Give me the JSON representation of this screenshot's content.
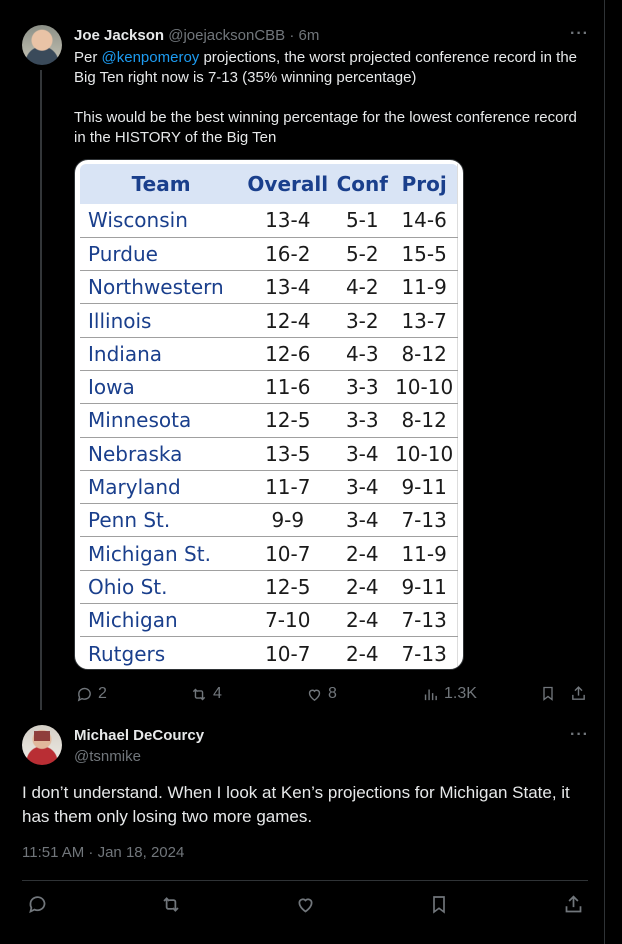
{
  "tweet1": {
    "author_name": "Joe Jackson",
    "author_handle": "@joejacksonCBB",
    "separator": "·",
    "time": "6m",
    "more": "···",
    "body_prefix": "Per ",
    "body_mention": "@kenpomeroy",
    "body_line1_rest": " projections, the worst projected conference record in the Big Ten right now is 7-13 (35% winning percentage)",
    "body_para2": "This would be the best winning percentage for the lowest conference record in the HISTORY of the Big Ten",
    "table": {
      "headers": [
        "Team",
        "Overall",
        "Conf",
        "Proj"
      ],
      "rows": [
        [
          "Wisconsin",
          "13-4",
          "5-1",
          "14-6"
        ],
        [
          "Purdue",
          "16-2",
          "5-2",
          "15-5"
        ],
        [
          "Northwestern",
          "13-4",
          "4-2",
          "11-9"
        ],
        [
          "Illinois",
          "12-4",
          "3-2",
          "13-7"
        ],
        [
          "Indiana",
          "12-6",
          "4-3",
          "8-12"
        ],
        [
          "Iowa",
          "11-6",
          "3-3",
          "10-10"
        ],
        [
          "Minnesota",
          "12-5",
          "3-3",
          "8-12"
        ],
        [
          "Nebraska",
          "13-5",
          "3-4",
          "10-10"
        ],
        [
          "Maryland",
          "11-7",
          "3-4",
          "9-11"
        ],
        [
          "Penn St.",
          "9-9",
          "3-4",
          "7-13"
        ],
        [
          "Michigan St.",
          "10-7",
          "2-4",
          "11-9"
        ],
        [
          "Ohio St.",
          "12-5",
          "2-4",
          "9-11"
        ],
        [
          "Michigan",
          "7-10",
          "2-4",
          "7-13"
        ],
        [
          "Rutgers",
          "10-7",
          "2-4",
          "7-13"
        ]
      ]
    },
    "actions": {
      "replies": "2",
      "reposts": "4",
      "likes": "8",
      "views": "1.3K"
    }
  },
  "tweet2": {
    "author_name": "Michael DeCourcy",
    "author_handle": "@tsnmike",
    "more": "···",
    "body": "I don’t understand. When I look at Ken’s projections for Michigan State, it has them only losing two more games.",
    "timestamp": "11:51 AM · Jan 18, 2024"
  },
  "icons": {
    "reply": "reply-icon",
    "repost": "repost-icon",
    "like": "like-icon",
    "views": "views-icon",
    "bookmark": "bookmark-icon",
    "share": "share-icon"
  },
  "colors": {
    "background": "#000000",
    "text": "#e7e9ea",
    "muted": "#71767b",
    "link": "#1d9bf0",
    "table_header_bg": "#d9e4f5",
    "table_team_text": "#1a3f8c"
  }
}
